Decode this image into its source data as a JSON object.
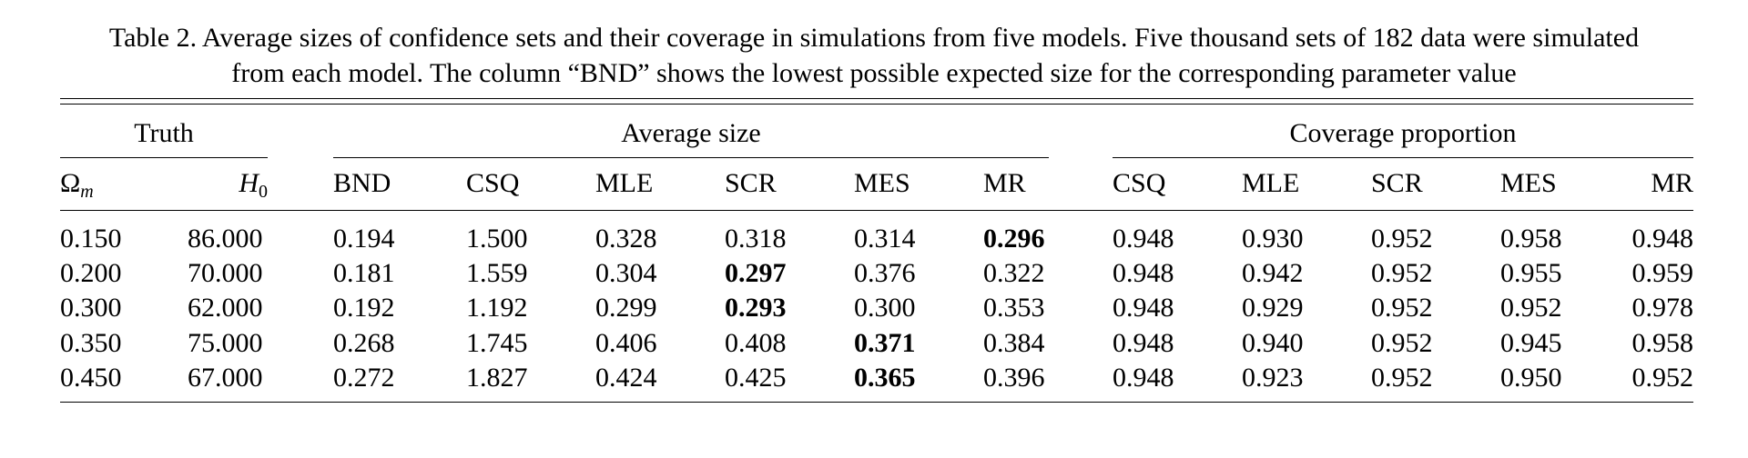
{
  "caption": {
    "line1": "Table 2.  Average sizes of confidence sets and their coverage in simulations from five models. Five thousand sets of 182 data were simulated",
    "line2": "from each model. The column “BND” shows the lowest possible expected size for the corresponding parameter value"
  },
  "groups": {
    "truth": "Truth",
    "average_size": "Average size",
    "coverage": "Coverage proportion"
  },
  "columns": {
    "omega_base": "Ω",
    "omega_sub": "m",
    "h_base": "H",
    "h_sub": "0",
    "size": [
      "BND",
      "CSQ",
      "MLE",
      "SCR",
      "MES",
      "MR"
    ],
    "coverage": [
      "CSQ",
      "MLE",
      "SCR",
      "MES",
      "MR"
    ]
  },
  "rows": [
    {
      "omega": "0.150",
      "h0": "86.000",
      "size": [
        "0.194",
        "1.500",
        "0.328",
        "0.318",
        "0.314",
        "0.296"
      ],
      "size_bold": 5,
      "coverage": [
        "0.948",
        "0.930",
        "0.952",
        "0.958",
        "0.948"
      ]
    },
    {
      "omega": "0.200",
      "h0": "70.000",
      "size": [
        "0.181",
        "1.559",
        "0.304",
        "0.297",
        "0.376",
        "0.322"
      ],
      "size_bold": 3,
      "coverage": [
        "0.948",
        "0.942",
        "0.952",
        "0.955",
        "0.959"
      ]
    },
    {
      "omega": "0.300",
      "h0": "62.000",
      "size": [
        "0.192",
        "1.192",
        "0.299",
        "0.293",
        "0.300",
        "0.353"
      ],
      "size_bold": 3,
      "coverage": [
        "0.948",
        "0.929",
        "0.952",
        "0.952",
        "0.978"
      ]
    },
    {
      "omega": "0.350",
      "h0": "75.000",
      "size": [
        "0.268",
        "1.745",
        "0.406",
        "0.408",
        "0.371",
        "0.384"
      ],
      "size_bold": 4,
      "coverage": [
        "0.948",
        "0.940",
        "0.952",
        "0.945",
        "0.958"
      ]
    },
    {
      "omega": "0.450",
      "h0": "67.000",
      "size": [
        "0.272",
        "1.827",
        "0.424",
        "0.425",
        "0.365",
        "0.396"
      ],
      "size_bold": 4,
      "coverage": [
        "0.948",
        "0.923",
        "0.952",
        "0.950",
        "0.952"
      ]
    }
  ]
}
